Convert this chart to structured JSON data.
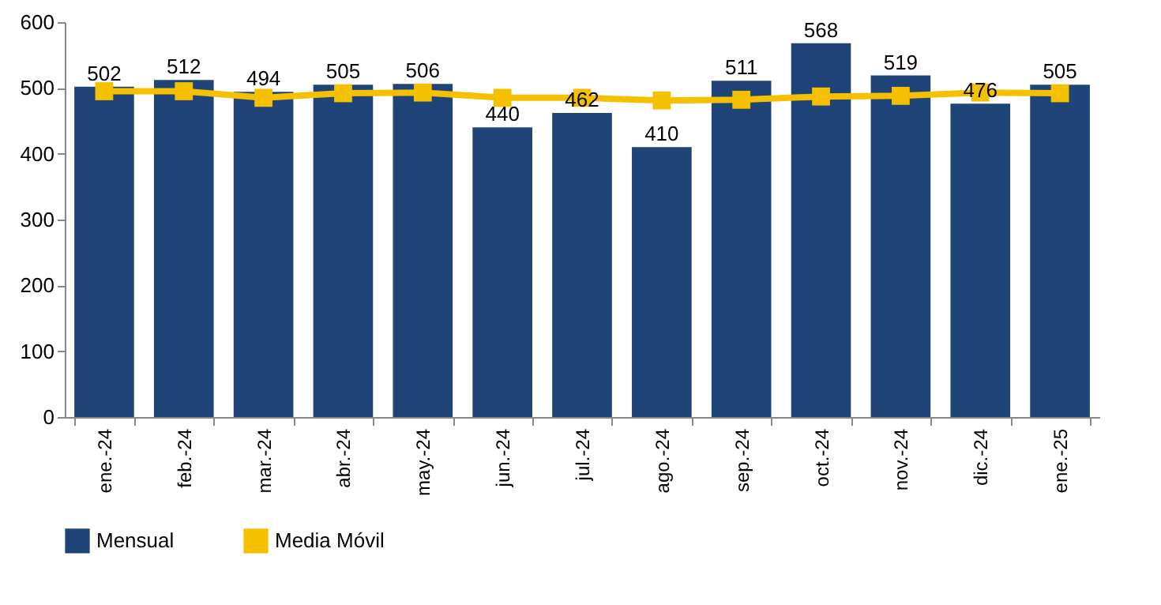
{
  "chart_data": {
    "type": "bar",
    "categories": [
      "ene.-24",
      "feb.-24",
      "mar.-24",
      "abr.-24",
      "may.-24",
      "jun.-24",
      "jul.-24",
      "ago.-24",
      "sep.-24",
      "oct.-24",
      "nov.-24",
      "dic.-24",
      "ene.-25"
    ],
    "series": [
      {
        "name": "Mensual",
        "color": "#1f4478",
        "values": [
          502,
          512,
          494,
          505,
          506,
          440,
          462,
          410,
          511,
          568,
          519,
          476,
          505
        ],
        "value_labels": [
          "502",
          "512",
          "494",
          "505",
          "506",
          "440",
          "462",
          "410",
          "511",
          "568",
          "519",
          "476",
          "505"
        ]
      },
      {
        "name": "Media Móvil",
        "type": "line",
        "color": "#f5c000",
        "marker": "square",
        "values": [
          495,
          495,
          485,
          492,
          493,
          485,
          485,
          481,
          482,
          487,
          488,
          493,
          492
        ]
      }
    ],
    "ylim": [
      0,
      600
    ],
    "yticks": [
      0,
      100,
      200,
      300,
      400,
      500,
      600
    ],
    "grid": false,
    "legend": "bottom"
  }
}
